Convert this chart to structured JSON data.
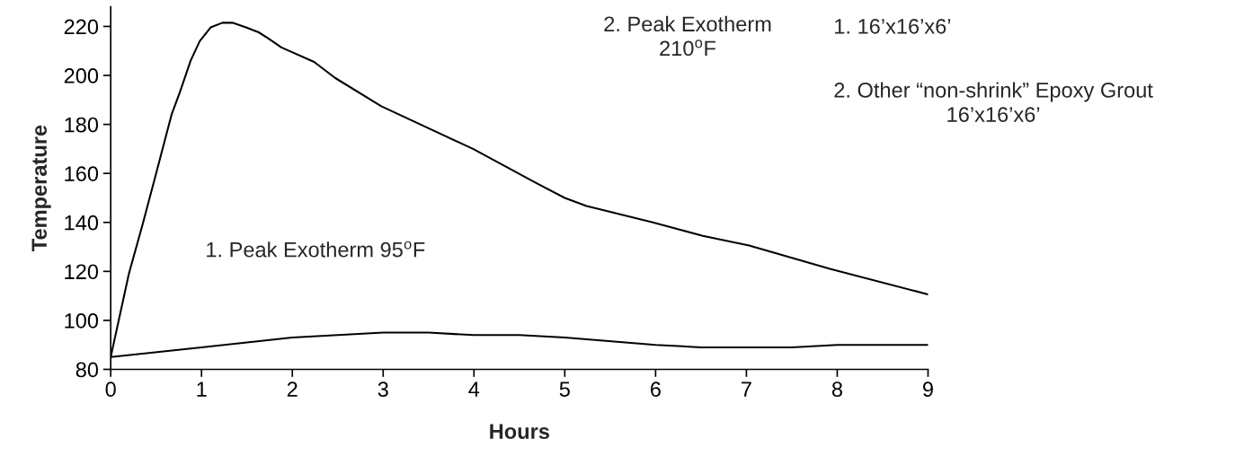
{
  "chart_data": {
    "type": "line",
    "xlabel": "Hours",
    "ylabel": "Temperature",
    "xlim": [
      0,
      9
    ],
    "xticks": [
      0,
      1,
      2,
      3,
      4,
      5,
      6,
      7,
      8,
      9
    ],
    "ylim": [
      80,
      228
    ],
    "yticks": [
      80,
      100,
      120,
      140,
      160,
      180,
      200,
      220
    ],
    "grid": false,
    "marker": "none",
    "line_style": "solid",
    "series": [
      {
        "color": "#000000",
        "x": [
          0,
          1,
          1.5,
          2,
          3,
          3.5,
          4,
          4.5,
          5,
          6,
          6.5,
          7,
          7.5,
          8,
          9
        ],
        "values": [
          85,
          89,
          91,
          93,
          95,
          95,
          94,
          94,
          93,
          90,
          89,
          89,
          89,
          90,
          90
        ]
      },
      {
        "color": "#000000",
        "x": [
          0,
          0.2,
          0.35,
          0.5,
          0.67,
          0.76,
          0.88,
          0.98,
          1.1,
          1.23,
          1.34,
          1.49,
          1.63,
          1.74,
          1.88,
          2.24,
          2.47,
          2.98,
          3.99,
          4.69,
          5.0,
          5.24,
          5.97,
          6.52,
          7.03,
          7.92,
          9.0
        ],
        "values": [
          85,
          119,
          139,
          160,
          184,
          193,
          206,
          214,
          219.6,
          221.5,
          221.5,
          219.6,
          217.6,
          215,
          211.4,
          205.5,
          199,
          187.4,
          170,
          156,
          150,
          146.7,
          140,
          134.5,
          130.6,
          121,
          110.6
        ]
      }
    ],
    "annotations": [
      "1. Peak Exotherm 95$^{o}$F",
      "2. Peak Exotherm\n210$^{o}$F",
      "1. 16’x16’x6’",
      "2. Other “non-shrink” Epoxy Grout\n16’x16’x6’"
    ]
  }
}
